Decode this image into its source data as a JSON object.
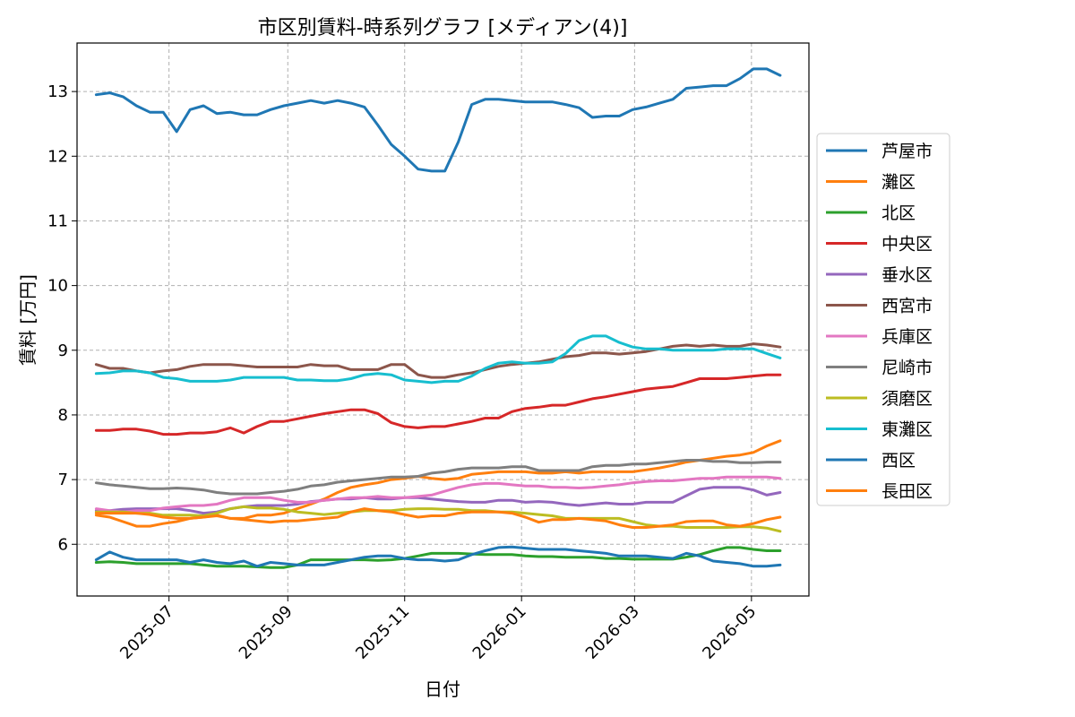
{
  "chart_data": {
    "type": "line",
    "title": "市区別賃料-時系列グラフ [メディアン(4)]",
    "xlabel": "日付",
    "ylabel": "賃料 [万円]",
    "x_ticks": [
      "2025-07",
      "2025-09",
      "2025-11",
      "2026-01",
      "2026-03",
      "2026-05"
    ],
    "y_ticks": [
      6,
      7,
      8,
      9,
      10,
      11,
      12,
      13
    ],
    "xlim": [
      "2025-05-14",
      "2026-05-31"
    ],
    "ylim": [
      5.2,
      13.75
    ],
    "grid": true,
    "legend_position": "right",
    "x": [
      "2025-05-24",
      "2025-05-31",
      "2025-06-07",
      "2025-06-14",
      "2025-06-21",
      "2025-06-28",
      "2025-07-05",
      "2025-07-12",
      "2025-07-19",
      "2025-07-26",
      "2025-08-02",
      "2025-08-09",
      "2025-08-16",
      "2025-08-23",
      "2025-08-30",
      "2025-09-06",
      "2025-09-13",
      "2025-09-20",
      "2025-09-27",
      "2025-10-04",
      "2025-10-11",
      "2025-10-18",
      "2025-10-25",
      "2025-11-01",
      "2025-11-08",
      "2025-11-15",
      "2025-11-22",
      "2025-11-29",
      "2025-12-06",
      "2025-12-13",
      "2025-12-20",
      "2025-12-27",
      "2026-01-03",
      "2026-01-10",
      "2026-01-17",
      "2026-01-24",
      "2026-01-31",
      "2026-02-07",
      "2026-02-14",
      "2026-02-21",
      "2026-02-28",
      "2026-03-07",
      "2026-03-14",
      "2026-03-21",
      "2026-03-28",
      "2026-04-04",
      "2026-04-11",
      "2026-04-18",
      "2026-04-25",
      "2026-05-02",
      "2026-05-09",
      "2026-05-16"
    ],
    "series": [
      {
        "name": "芦屋市",
        "color": "#1f77b4",
        "values": [
          12.95,
          12.98,
          12.92,
          12.78,
          12.68,
          12.68,
          12.38,
          12.72,
          12.78,
          12.66,
          12.68,
          12.64,
          12.64,
          12.72,
          12.78,
          12.82,
          12.86,
          12.82,
          12.86,
          12.82,
          12.76,
          12.48,
          12.18,
          12.0,
          11.8,
          11.77,
          11.77,
          12.22,
          12.8,
          12.88,
          12.88,
          12.86,
          12.84,
          12.84,
          12.84,
          12.8,
          12.75,
          12.6,
          12.62,
          12.62,
          12.72,
          12.76,
          12.82,
          12.88,
          13.05,
          13.07,
          13.09,
          13.09,
          13.2,
          13.35,
          13.35,
          13.25
        ]
      },
      {
        "name": "灘区",
        "color": "#ff7f0e",
        "values": [
          6.45,
          6.42,
          6.35,
          6.28,
          6.28,
          6.32,
          6.35,
          6.4,
          6.42,
          6.45,
          6.4,
          6.4,
          6.45,
          6.45,
          6.48,
          6.55,
          6.62,
          6.7,
          6.8,
          6.88,
          6.92,
          6.95,
          7.0,
          7.02,
          7.05,
          7.02,
          7.0,
          7.02,
          7.08,
          7.1,
          7.12,
          7.12,
          7.12,
          7.1,
          7.1,
          7.12,
          7.1,
          7.12,
          7.12,
          7.12,
          7.12,
          7.15,
          7.18,
          7.22,
          7.27,
          7.3,
          7.33,
          7.36,
          7.38,
          7.42,
          7.52,
          7.6
        ]
      },
      {
        "name": "北区",
        "color": "#2ca02c",
        "values": [
          5.72,
          5.73,
          5.72,
          5.7,
          5.7,
          5.7,
          5.7,
          5.7,
          5.68,
          5.66,
          5.66,
          5.66,
          5.65,
          5.64,
          5.64,
          5.68,
          5.76,
          5.76,
          5.76,
          5.76,
          5.76,
          5.75,
          5.76,
          5.78,
          5.82,
          5.86,
          5.86,
          5.86,
          5.85,
          5.84,
          5.84,
          5.84,
          5.82,
          5.81,
          5.81,
          5.8,
          5.8,
          5.8,
          5.78,
          5.78,
          5.77,
          5.77,
          5.77,
          5.77,
          5.8,
          5.84,
          5.9,
          5.95,
          5.95,
          5.92,
          5.9,
          5.9
        ]
      },
      {
        "name": "中央区",
        "color": "#d62728",
        "values": [
          7.76,
          7.76,
          7.78,
          7.78,
          7.75,
          7.7,
          7.7,
          7.72,
          7.72,
          7.74,
          7.8,
          7.72,
          7.82,
          7.9,
          7.9,
          7.94,
          7.98,
          8.02,
          8.05,
          8.08,
          8.08,
          8.02,
          7.88,
          7.82,
          7.8,
          7.82,
          7.82,
          7.86,
          7.9,
          7.95,
          7.95,
          8.05,
          8.1,
          8.12,
          8.15,
          8.15,
          8.2,
          8.25,
          8.28,
          8.32,
          8.36,
          8.4,
          8.42,
          8.44,
          8.5,
          8.56,
          8.56,
          8.56,
          8.58,
          8.6,
          8.62,
          8.62
        ]
      },
      {
        "name": "垂水区",
        "color": "#9467bd",
        "values": [
          6.52,
          6.52,
          6.54,
          6.55,
          6.55,
          6.55,
          6.55,
          6.52,
          6.48,
          6.5,
          6.55,
          6.58,
          6.6,
          6.6,
          6.6,
          6.62,
          6.66,
          6.68,
          6.7,
          6.7,
          6.72,
          6.7,
          6.7,
          6.72,
          6.72,
          6.7,
          6.68,
          6.66,
          6.65,
          6.65,
          6.68,
          6.68,
          6.65,
          6.66,
          6.65,
          6.62,
          6.6,
          6.62,
          6.64,
          6.62,
          6.62,
          6.65,
          6.65,
          6.65,
          6.75,
          6.85,
          6.88,
          6.88,
          6.88,
          6.84,
          6.76,
          6.8
        ]
      },
      {
        "name": "西宮市",
        "color": "#8c564b",
        "values": [
          8.78,
          8.72,
          8.72,
          8.68,
          8.65,
          8.68,
          8.7,
          8.75,
          8.78,
          8.78,
          8.78,
          8.76,
          8.74,
          8.74,
          8.74,
          8.74,
          8.78,
          8.76,
          8.76,
          8.7,
          8.7,
          8.7,
          8.78,
          8.78,
          8.62,
          8.58,
          8.58,
          8.62,
          8.65,
          8.7,
          8.75,
          8.78,
          8.8,
          8.82,
          8.86,
          8.9,
          8.92,
          8.96,
          8.96,
          8.94,
          8.96,
          8.98,
          9.02,
          9.06,
          9.08,
          9.06,
          9.08,
          9.06,
          9.06,
          9.1,
          9.08,
          9.05
        ]
      },
      {
        "name": "兵庫区",
        "color": "#e377c2",
        "values": [
          6.55,
          6.52,
          6.5,
          6.52,
          6.52,
          6.56,
          6.58,
          6.6,
          6.6,
          6.62,
          6.68,
          6.72,
          6.72,
          6.72,
          6.68,
          6.65,
          6.65,
          6.68,
          6.7,
          6.72,
          6.72,
          6.74,
          6.72,
          6.72,
          6.74,
          6.76,
          6.82,
          6.88,
          6.92,
          6.94,
          6.94,
          6.92,
          6.9,
          6.9,
          6.88,
          6.88,
          6.87,
          6.88,
          6.9,
          6.92,
          6.95,
          6.97,
          6.98,
          6.98,
          7.0,
          7.02,
          7.02,
          7.04,
          7.04,
          7.04,
          7.04,
          7.02
        ]
      },
      {
        "name": "尼崎市",
        "color": "#7f7f7f",
        "values": [
          6.95,
          6.92,
          6.9,
          6.88,
          6.86,
          6.86,
          6.87,
          6.86,
          6.84,
          6.8,
          6.78,
          6.78,
          6.78,
          6.8,
          6.82,
          6.85,
          6.9,
          6.92,
          6.96,
          6.98,
          7.0,
          7.02,
          7.04,
          7.04,
          7.05,
          7.1,
          7.12,
          7.16,
          7.18,
          7.18,
          7.18,
          7.2,
          7.2,
          7.14,
          7.14,
          7.14,
          7.14,
          7.2,
          7.22,
          7.22,
          7.24,
          7.24,
          7.26,
          7.28,
          7.3,
          7.3,
          7.28,
          7.28,
          7.26,
          7.26,
          7.27,
          7.27
        ]
      },
      {
        "name": "須磨区",
        "color": "#bcbd22",
        "values": [
          6.5,
          6.5,
          6.5,
          6.48,
          6.48,
          6.45,
          6.45,
          6.45,
          6.44,
          6.48,
          6.55,
          6.58,
          6.56,
          6.56,
          6.54,
          6.5,
          6.48,
          6.46,
          6.48,
          6.5,
          6.52,
          6.52,
          6.52,
          6.54,
          6.55,
          6.55,
          6.54,
          6.54,
          6.52,
          6.52,
          6.5,
          6.5,
          6.48,
          6.46,
          6.44,
          6.4,
          6.4,
          6.4,
          6.4,
          6.4,
          6.35,
          6.3,
          6.28,
          6.28,
          6.26,
          6.26,
          6.26,
          6.26,
          6.27,
          6.27,
          6.25,
          6.2
        ]
      },
      {
        "name": "東灘区",
        "color": "#17becf",
        "values": [
          8.64,
          8.65,
          8.68,
          8.68,
          8.65,
          8.58,
          8.56,
          8.52,
          8.52,
          8.52,
          8.54,
          8.58,
          8.58,
          8.58,
          8.58,
          8.54,
          8.54,
          8.53,
          8.53,
          8.56,
          8.62,
          8.64,
          8.62,
          8.54,
          8.52,
          8.5,
          8.52,
          8.52,
          8.6,
          8.72,
          8.8,
          8.82,
          8.8,
          8.8,
          8.82,
          8.95,
          9.15,
          9.22,
          9.22,
          9.12,
          9.05,
          9.02,
          9.02,
          9.0,
          9.0,
          9.0,
          9.0,
          9.02,
          9.02,
          9.02,
          8.95,
          8.88
        ]
      },
      {
        "name": "西区",
        "color": "#1f77b4",
        "values": [
          5.76,
          5.88,
          5.8,
          5.76,
          5.76,
          5.76,
          5.76,
          5.72,
          5.76,
          5.72,
          5.7,
          5.74,
          5.66,
          5.72,
          5.7,
          5.68,
          5.68,
          5.68,
          5.72,
          5.76,
          5.8,
          5.82,
          5.82,
          5.78,
          5.76,
          5.76,
          5.74,
          5.76,
          5.84,
          5.9,
          5.95,
          5.96,
          5.94,
          5.92,
          5.92,
          5.92,
          5.9,
          5.88,
          5.86,
          5.82,
          5.82,
          5.82,
          5.8,
          5.78,
          5.86,
          5.82,
          5.74,
          5.72,
          5.7,
          5.66,
          5.66,
          5.68
        ]
      },
      {
        "name": "長田区",
        "color": "#ff7f0e",
        "values": [
          6.48,
          6.48,
          6.48,
          6.48,
          6.46,
          6.42,
          6.4,
          6.4,
          6.42,
          6.44,
          6.4,
          6.38,
          6.36,
          6.34,
          6.36,
          6.36,
          6.38,
          6.4,
          6.42,
          6.5,
          6.55,
          6.52,
          6.5,
          6.46,
          6.42,
          6.44,
          6.44,
          6.48,
          6.5,
          6.5,
          6.5,
          6.48,
          6.42,
          6.34,
          6.38,
          6.38,
          6.4,
          6.38,
          6.36,
          6.3,
          6.26,
          6.26,
          6.28,
          6.3,
          6.35,
          6.36,
          6.36,
          6.3,
          6.28,
          6.32,
          6.38,
          6.42
        ]
      }
    ]
  }
}
